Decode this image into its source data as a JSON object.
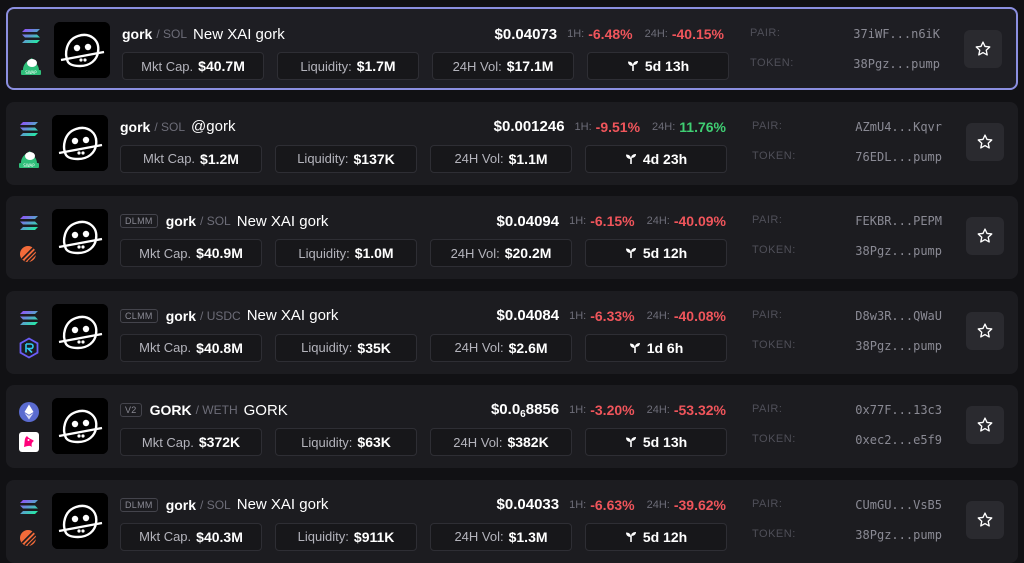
{
  "colors": {
    "negative": "#f0555b",
    "positive": "#3fcf73",
    "selected_border": "#8b8fe0"
  },
  "labels": {
    "h1": "1H:",
    "h24": "24H:",
    "mkt_cap": "Mkt Cap.",
    "liquidity": "Liquidity:",
    "vol_24h": "24H Vol:",
    "pair": "PAIR:",
    "token": "TOKEN:"
  },
  "rows": [
    {
      "selected": true,
      "chain_icon": "solana-icon",
      "dex_icon": "swap-icon",
      "tag": "",
      "base": "gork",
      "quote": "/ SOL",
      "name": "New XAI gork",
      "price": "$0.04073",
      "price_sub": "",
      "price_tail": "",
      "change_1h": "-6.48%",
      "change_24h": "-40.15%",
      "change_24h_dir": "neg",
      "mkt_cap": "$40.7M",
      "liquidity": "$1.7M",
      "volume": "$17.1M",
      "age": "5d 13h",
      "pair_addr": "37iWF...n6iK",
      "token_addr": "38Pgz...pump"
    },
    {
      "selected": false,
      "chain_icon": "solana-icon",
      "dex_icon": "swap-icon",
      "tag": "",
      "base": "gork",
      "quote": "/ SOL",
      "name": "@gork",
      "price": "$0.001246",
      "price_sub": "",
      "price_tail": "",
      "change_1h": "-9.51%",
      "change_24h": "11.76%",
      "change_24h_dir": "pos",
      "mkt_cap": "$1.2M",
      "liquidity": "$137K",
      "volume": "$1.1M",
      "age": "4d 23h",
      "pair_addr": "AZmU4...Kqvr",
      "token_addr": "76EDL...pump"
    },
    {
      "selected": false,
      "chain_icon": "solana-icon",
      "dex_icon": "meteora-icon",
      "tag": "DLMM",
      "base": "gork",
      "quote": "/ SOL",
      "name": "New XAI gork",
      "price": "$0.04094",
      "price_sub": "",
      "price_tail": "",
      "change_1h": "-6.15%",
      "change_24h": "-40.09%",
      "change_24h_dir": "neg",
      "mkt_cap": "$40.9M",
      "liquidity": "$1.0M",
      "volume": "$20.2M",
      "age": "5d 12h",
      "pair_addr": "FEKBR...PEPM",
      "token_addr": "38Pgz...pump"
    },
    {
      "selected": false,
      "chain_icon": "solana-icon",
      "dex_icon": "raydium-icon",
      "tag": "CLMM",
      "base": "gork",
      "quote": "/ USDC",
      "name": "New XAI gork",
      "price": "$0.04084",
      "price_sub": "",
      "price_tail": "",
      "change_1h": "-6.33%",
      "change_24h": "-40.08%",
      "change_24h_dir": "neg",
      "mkt_cap": "$40.8M",
      "liquidity": "$35K",
      "volume": "$2.6M",
      "age": "1d 6h",
      "pair_addr": "D8w3R...QWaU",
      "token_addr": "38Pgz...pump"
    },
    {
      "selected": false,
      "chain_icon": "ethereum-icon",
      "dex_icon": "uniswap-icon",
      "tag": "V2",
      "base": "GORK",
      "quote": "/ WETH",
      "name": "GORK",
      "price": "$0.0",
      "price_sub": "6",
      "price_tail": "8856",
      "change_1h": "-3.20%",
      "change_24h": "-53.32%",
      "change_24h_dir": "neg",
      "mkt_cap": "$372K",
      "liquidity": "$63K",
      "volume": "$382K",
      "age": "5d 13h",
      "pair_addr": "0x77F...13c3",
      "token_addr": "0xec2...e5f9"
    },
    {
      "selected": false,
      "chain_icon": "solana-icon",
      "dex_icon": "meteora-icon",
      "tag": "DLMM",
      "base": "gork",
      "quote": "/ SOL",
      "name": "New XAI gork",
      "price": "$0.04033",
      "price_sub": "",
      "price_tail": "",
      "change_1h": "-6.63%",
      "change_24h": "-39.62%",
      "change_24h_dir": "neg",
      "mkt_cap": "$40.3M",
      "liquidity": "$911K",
      "volume": "$1.3M",
      "age": "5d 12h",
      "pair_addr": "CUmGU...VsB5",
      "token_addr": "38Pgz...pump"
    }
  ]
}
